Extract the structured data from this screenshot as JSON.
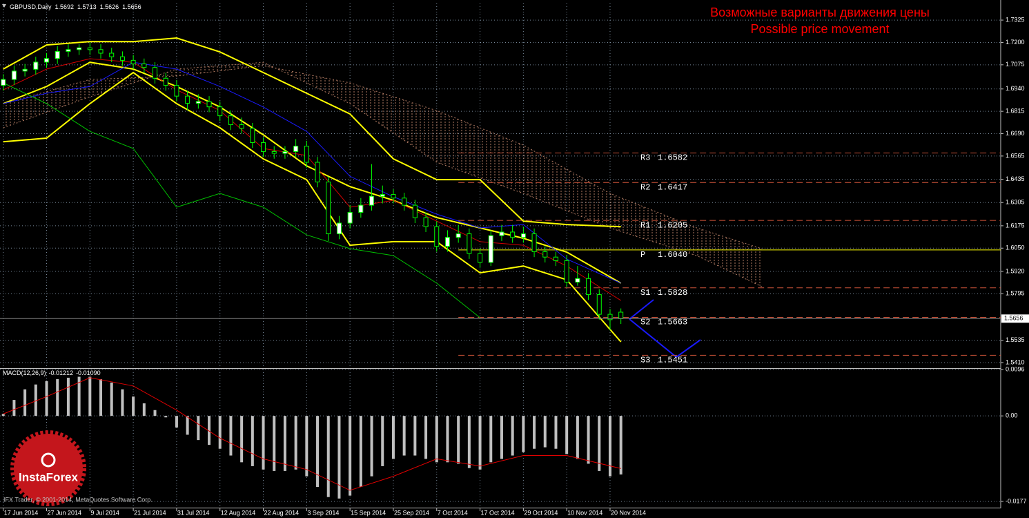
{
  "chart_data": [
    {
      "type": "candlestick",
      "title": "GBPUSD,Daily",
      "annotation": [
        "Возможные варианты движения цены",
        "Possible price movement"
      ],
      "annotation_color": "#ff0000",
      "x": [
        0,
        2,
        4,
        6,
        8,
        10,
        12,
        14,
        16,
        18,
        20,
        22,
        24,
        26,
        28,
        30,
        32,
        34,
        36,
        38,
        40,
        42,
        44,
        46,
        48,
        50,
        52,
        54,
        56,
        58,
        60,
        62,
        64,
        66,
        68,
        70,
        72,
        74,
        76,
        78,
        80,
        82,
        84,
        86,
        88,
        90,
        92,
        94,
        96,
        98,
        100,
        102,
        104,
        106,
        108,
        110,
        112,
        114
      ],
      "open": [
        1.696,
        1.6993,
        1.704,
        1.705,
        1.709,
        1.711,
        1.715,
        1.716,
        1.717,
        1.716,
        1.714,
        1.712,
        1.71,
        1.708,
        1.706,
        1.7,
        1.696,
        1.69,
        1.686,
        1.687,
        1.684,
        1.679,
        1.674,
        1.672,
        1.664,
        1.659,
        1.658,
        1.659,
        1.662,
        1.653,
        1.642,
        1.613,
        1.619,
        1.625,
        1.629,
        1.634,
        1.635,
        1.633,
        1.629,
        1.622,
        1.617,
        1.606,
        1.611,
        1.613,
        1.602,
        1.597,
        1.612,
        1.614,
        1.611,
        1.613,
        1.603,
        1.6,
        1.598,
        1.586,
        1.588,
        1.579,
        1.568,
        1.5692
      ],
      "high": [
        1.7023,
        1.707,
        1.708,
        1.712,
        1.714,
        1.718,
        1.719,
        1.719,
        1.72,
        1.719,
        1.717,
        1.715,
        1.713,
        1.711,
        1.709,
        1.703,
        1.699,
        1.693,
        1.691,
        1.69,
        1.687,
        1.682,
        1.678,
        1.675,
        1.667,
        1.662,
        1.662,
        1.666,
        1.665,
        1.656,
        1.645,
        1.623,
        1.629,
        1.633,
        1.652,
        1.64,
        1.638,
        1.636,
        1.632,
        1.625,
        1.62,
        1.615,
        1.618,
        1.616,
        1.605,
        1.615,
        1.618,
        1.618,
        1.617,
        1.616,
        1.606,
        1.603,
        1.601,
        1.595,
        1.591,
        1.582,
        1.571,
        1.5713
      ],
      "low": [
        1.693,
        1.6963,
        1.701,
        1.702,
        1.706,
        1.708,
        1.712,
        1.713,
        1.713,
        1.711,
        1.709,
        1.707,
        1.705,
        1.703,
        1.697,
        1.693,
        1.687,
        1.682,
        1.683,
        1.681,
        1.676,
        1.671,
        1.669,
        1.661,
        1.656,
        1.655,
        1.655,
        1.656,
        1.65,
        1.639,
        1.609,
        1.61,
        1.616,
        1.622,
        1.626,
        1.63,
        1.63,
        1.626,
        1.619,
        1.614,
        1.603,
        1.603,
        1.608,
        1.599,
        1.594,
        1.595,
        1.609,
        1.608,
        1.608,
        1.6,
        1.597,
        1.595,
        1.583,
        1.584,
        1.576,
        1.565,
        1.559,
        1.5626
      ],
      "close": [
        1.6993,
        1.704,
        1.705,
        1.709,
        1.711,
        1.715,
        1.716,
        1.717,
        1.716,
        1.714,
        1.712,
        1.71,
        1.708,
        1.706,
        1.7,
        1.696,
        1.69,
        1.686,
        1.687,
        1.684,
        1.679,
        1.674,
        1.672,
        1.664,
        1.659,
        1.658,
        1.659,
        1.662,
        1.653,
        1.642,
        1.613,
        1.619,
        1.625,
        1.629,
        1.634,
        1.635,
        1.633,
        1.629,
        1.622,
        1.617,
        1.606,
        1.611,
        1.613,
        1.602,
        1.597,
        1.612,
        1.614,
        1.611,
        1.613,
        1.603,
        1.6,
        1.598,
        1.586,
        1.588,
        1.579,
        1.568,
        1.565,
        1.5656
      ],
      "candle_color": "#00ff00",
      "up_color": "#ffffff",
      "down_color": "#000000",
      "series": [
        {
          "color": "#ffff00",
          "x": [
            0,
            8,
            16,
            24,
            32,
            40,
            48,
            56,
            64,
            72,
            80,
            88,
            96,
            104,
            114
          ],
          "values": [
            1.7051,
            1.7186,
            1.7205,
            1.7205,
            1.7225,
            1.7147,
            1.7032,
            1.6916,
            1.68,
            1.6549,
            1.6433,
            1.6433,
            1.6201,
            1.6182,
            1.617
          ]
        },
        {
          "color": "#ffff00",
          "x": [
            0,
            8,
            16,
            24,
            32,
            40,
            48,
            56,
            64,
            72,
            80,
            88,
            96,
            104,
            114
          ],
          "values": [
            1.6858,
            1.6954,
            1.7089,
            1.7051,
            1.6954,
            1.6839,
            1.6684,
            1.651,
            1.6394,
            1.6317,
            1.6221,
            1.6163,
            1.6105,
            1.6028,
            1.5854
          ]
        },
        {
          "color": "#ffff00",
          "x": [
            0,
            8,
            16,
            24,
            32,
            40,
            48,
            56,
            64,
            72,
            80,
            88,
            96,
            104,
            114
          ],
          "values": [
            1.6645,
            1.6665,
            1.6858,
            1.7032,
            1.6858,
            1.6723,
            1.6549,
            1.6433,
            1.6066,
            1.6086,
            1.6086,
            1.5912,
            1.595,
            1.5873,
            1.5526
          ]
        },
        {
          "color": "#d00000",
          "x": [
            0,
            8,
            16,
            24,
            32,
            40,
            48,
            56,
            64,
            72,
            80,
            88,
            96,
            104,
            114
          ],
          "values": [
            1.6935,
            1.7051,
            1.7109,
            1.7089,
            1.6935,
            1.6819,
            1.6607,
            1.6568,
            1.6279,
            1.6317,
            1.6201,
            1.6086,
            1.6066,
            1.595,
            1.5757
          ]
        },
        {
          "color": "#1a1aff",
          "x": [
            0,
            8,
            16,
            24,
            32,
            40,
            48,
            56,
            64,
            72,
            80,
            88,
            96,
            104,
            114
          ],
          "values": [
            1.6858,
            1.6916,
            1.6954,
            1.7089,
            1.7051,
            1.6954,
            1.6839,
            1.6703,
            1.6452,
            1.6337,
            1.624,
            1.6163,
            1.6182,
            1.5989,
            1.5854
          ]
        },
        {
          "color": "#00c000",
          "x": [
            0,
            8,
            16,
            24,
            32,
            40,
            48,
            56,
            64,
            72,
            80,
            88,
            96,
            104,
            114
          ],
          "values": [
            1.6974,
            1.6858,
            1.6703,
            1.6607,
            1.6279,
            1.6356,
            1.6279,
            1.6124,
            1.6047,
            1.6008,
            1.5854,
            1.5661,
            null,
            null,
            null
          ]
        }
      ],
      "cloud": {
        "color": "#b07a62",
        "x": [
          0,
          16,
          32,
          48,
          64,
          80,
          96,
          112,
          128,
          140
        ],
        "span_a": [
          1.6858,
          1.6993,
          1.7012,
          1.707,
          1.6974,
          1.6819,
          1.6626,
          1.6356,
          1.6163,
          1.6047
        ],
        "span_b": [
          1.6723,
          1.6896,
          1.7051,
          1.7089,
          1.6858,
          1.653,
          1.6356,
          1.6163,
          1.6008,
          1.5835
        ]
      },
      "levels": [
        {
          "name": "R3",
          "value": 1.6582,
          "color": "#d2553a",
          "style": "dashed"
        },
        {
          "name": "R2",
          "value": 1.6417,
          "color": "#d2553a",
          "style": "dashed"
        },
        {
          "name": "R1",
          "value": 1.6205,
          "color": "#d2553a",
          "style": "dashed"
        },
        {
          "name": "P",
          "value": 1.604,
          "label": "1.6040",
          "color": "#ffff00",
          "style": "solid"
        },
        {
          "name": "S1",
          "value": 1.5828,
          "color": "#d2553a",
          "style": "dashed"
        },
        {
          "name": "S2",
          "value": 1.5663,
          "color": "#d2553a",
          "style": "dashed"
        },
        {
          "name": "S3",
          "value": 1.5451,
          "color": "#d2553a",
          "style": "dashed"
        }
      ],
      "price_line_color": "#808080",
      "xlim": [
        -0.6,
        184.1
      ],
      "ylim": [
        1.5383,
        1.7418
      ],
      "yticks": [
        1.7325,
        {
          "value": 1.72,
          "label": "1.7200"
        },
        1.7075,
        {
          "value": 1.694,
          "label": "1.6940"
        },
        1.6815,
        {
          "value": 1.669,
          "label": "1.6690"
        },
        1.6565,
        1.6435,
        1.6305,
        1.6175,
        {
          "value": 1.605,
          "label": "1.6050"
        },
        {
          "value": 1.592,
          "label": "1.5920"
        },
        1.5795,
        1.5535,
        {
          "value": 1.541,
          "label": "1.5410"
        }
      ],
      "xticks": [
        {
          "value": 0,
          "label": "17 Jun 2014"
        },
        {
          "value": 8,
          "label": "27 Jun 2014"
        },
        {
          "value": 16,
          "label": "9 Jul 2014"
        },
        {
          "value": 24,
          "label": "21 Jul 2014"
        },
        {
          "value": 32,
          "label": "31 Jul 2014"
        },
        {
          "value": 40,
          "label": "12 Aug 2014"
        },
        {
          "value": 48,
          "label": "22 Aug 2014"
        },
        {
          "value": 56,
          "label": "3 Sep 2014"
        },
        {
          "value": 64,
          "label": "15 Sep 2014"
        },
        {
          "value": 72,
          "label": "25 Sep 2014"
        },
        {
          "value": 80,
          "label": "7 Oct 2014"
        },
        {
          "value": 88,
          "label": "17 Oct 2014"
        },
        {
          "value": 96,
          "label": "29 Oct 2014"
        },
        {
          "value": 104,
          "label": "10 Nov 2014"
        },
        {
          "value": 112,
          "label": "20 Nov 2014"
        }
      ],
      "grid": true,
      "grid_color": "#778899"
    },
    {
      "type": "bar",
      "title": "MACD(12,26,9)",
      "header_values": [
        -0.01212,
        {
          "value": -0.0109,
          "label": "-0.01090"
        }
      ],
      "x": [
        0,
        2,
        4,
        6,
        8,
        10,
        12,
        14,
        16,
        18,
        20,
        22,
        24,
        26,
        28,
        30,
        32,
        34,
        36,
        38,
        40,
        42,
        44,
        46,
        48,
        50,
        52,
        54,
        56,
        58,
        60,
        62,
        64,
        66,
        68,
        70,
        72,
        74,
        76,
        78,
        80,
        82,
        84,
        86,
        88,
        90,
        92,
        94,
        96,
        98,
        100,
        102,
        104,
        106,
        108,
        110,
        112,
        114
      ],
      "values": [
        0.0004,
        0.0033,
        0.0055,
        0.0065,
        0.0072,
        0.0076,
        0.0079,
        0.0081,
        0.0081,
        0.0076,
        0.0069,
        0.0055,
        0.004,
        0.0026,
        0.0012,
        -0.0003,
        -0.0024,
        -0.0039,
        -0.005,
        -0.006,
        -0.0068,
        -0.0082,
        -0.0096,
        -0.0104,
        -0.0111,
        -0.0114,
        -0.0114,
        -0.0111,
        -0.0125,
        -0.0147,
        -0.0168,
        -0.0171,
        -0.0165,
        -0.0147,
        -0.0125,
        -0.0104,
        -0.0089,
        -0.0082,
        -0.0082,
        -0.0089,
        -0.0096,
        -0.0096,
        -0.0099,
        -0.0108,
        -0.0111,
        -0.0096,
        -0.0089,
        -0.0082,
        -0.0075,
        -0.0068,
        -0.0065,
        -0.0068,
        -0.0079,
        -0.0089,
        -0.0099,
        -0.0114,
        -0.0125,
        -0.01212
      ],
      "color": "#c0c0c0",
      "series": [
        {
          "color": "#e00000",
          "x": [
            0,
            8,
            16,
            24,
            32,
            40,
            48,
            56,
            64,
            72,
            80,
            88,
            96,
            104,
            114
          ],
          "values": [
            0.0004,
            0.004,
            0.0079,
            0.0062,
            0.0012,
            -0.0046,
            -0.0089,
            -0.0111,
            -0.0154,
            -0.0125,
            -0.0089,
            -0.0104,
            -0.0082,
            -0.0082,
            -0.0109
          ]
        }
      ],
      "xlim": [
        -0.6,
        184.1
      ],
      "ylim": [
        -0.0187,
        0.0096
      ],
      "yticks": [
        0.0096,
        {
          "value": 0,
          "label": "0.00"
        },
        -0.0177
      ],
      "grid": true,
      "grid_color": "#778899"
    }
  ],
  "copyright": "IFX Trader, © 2001-2014, MetaQuotes Software Corp.",
  "logo": "InstaForex"
}
